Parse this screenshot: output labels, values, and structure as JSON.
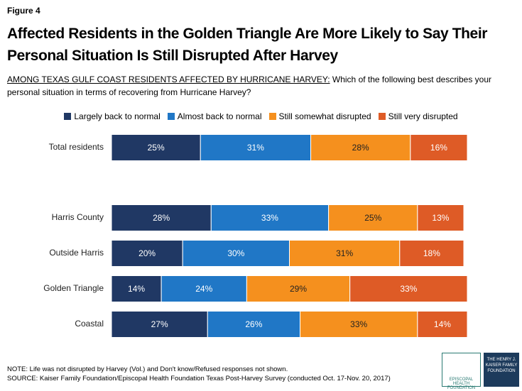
{
  "chart_data": {
    "type": "stacked-barh",
    "figure_label": "Figure 4",
    "title": "Affected Residents in the Golden Triangle Are More Likely to Say Their Personal Situation Is Still Disrupted After Harvey",
    "subtitle_lead": "AMONG TEXAS GULF COAST RESIDENTS AFFECTED BY HURRICANE HARVEY:",
    "subtitle": "Which of the following best describes your personal situation in terms of recovering from Hurricane Harvey?",
    "categories": [
      "Total residents",
      "Harris County",
      "Outside Harris",
      "Golden Triangle",
      "Coastal"
    ],
    "xlim": [
      0,
      100
    ],
    "series": [
      {
        "name": "Largely back to normal",
        "color": "#203864",
        "values": [
          25,
          28,
          20,
          14,
          27
        ],
        "value_labels": [
          "25%",
          "28%",
          "20%",
          "14%",
          "27%"
        ]
      },
      {
        "name": "Almost back to normal",
        "color": "#2077c6",
        "values": [
          31,
          33,
          30,
          24,
          26
        ],
        "value_labels": [
          "31%",
          "33%",
          "30%",
          "24%",
          "26%"
        ]
      },
      {
        "name": "Still somewhat disrupted",
        "color": "#f5901e",
        "values": [
          28,
          25,
          31,
          29,
          33
        ],
        "value_labels": [
          "28%",
          "25%",
          "31%",
          "29%",
          "33%"
        ]
      },
      {
        "name": "Still very disrupted",
        "color": "#de5b26",
        "values": [
          16,
          13,
          18,
          33,
          14
        ],
        "value_labels": [
          "16%",
          "13%",
          "18%",
          "33%",
          "14%"
        ]
      }
    ],
    "note": "NOTE: Life was not disrupted by Harvey (Vol.) and Don't know/Refused responses not shown.",
    "source": "SOURCE: Kaiser Family Foundation/Episcopal Health Foundation Texas Post-Harvey Survey (conducted Oct. 17-Nov. 20, 2017)",
    "logos": [
      "EPISCOPAL HEALTH FOUNDATION",
      "THE HENRY J. KAISER FAMILY FOUNDATION"
    ]
  }
}
